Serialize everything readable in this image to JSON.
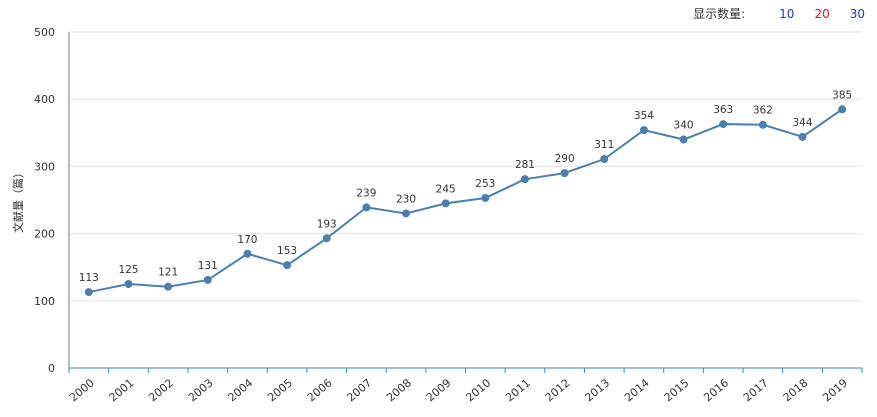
{
  "controls": {
    "label": "显示数量:",
    "options": [
      "10",
      "20",
      "30"
    ]
  },
  "chart_data": {
    "type": "line",
    "title": "",
    "xlabel": "",
    "ylabel": "文献量（篇）",
    "ylim": [
      0,
      500
    ],
    "yticks": [
      0,
      100,
      200,
      300,
      400,
      500
    ],
    "categories": [
      "2000",
      "2001",
      "2002",
      "2003",
      "2004",
      "2005",
      "2006",
      "2007",
      "2008",
      "2009",
      "2010",
      "2011",
      "2012",
      "2013",
      "2014",
      "2015",
      "2016",
      "2017",
      "2018",
      "2019"
    ],
    "series": [
      {
        "values": [
          113,
          125,
          121,
          131,
          170,
          153,
          193,
          239,
          230,
          245,
          253,
          281,
          290,
          311,
          354,
          340,
          363,
          362,
          344,
          385
        ]
      }
    ],
    "grid": true,
    "line_color": "#4a7fb0"
  }
}
